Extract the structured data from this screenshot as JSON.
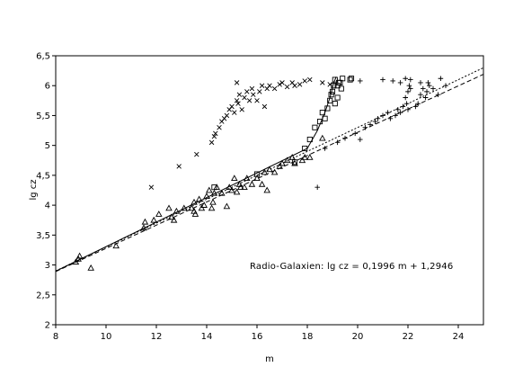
{
  "chart_data": {
    "type": "scatter",
    "xlabel": "m",
    "ylabel": "lg cz",
    "xlim": [
      8,
      25
    ],
    "ylim": [
      2,
      6.5
    ],
    "x_ticks": [
      "8",
      "10",
      "12",
      "14",
      "16",
      "18",
      "20",
      "22",
      "24"
    ],
    "y_ticks": [
      "2",
      "2,5",
      "3",
      "3,5",
      "4",
      "4,5",
      "5",
      "5,5",
      "6",
      "6,5"
    ],
    "grid": false,
    "annotation": "Radio-Galaxien: lg cz = 0,1996 m + 1,2946",
    "series": [
      {
        "marker": "triangle",
        "points": [
          [
            8.8,
            3.05
          ],
          [
            8.9,
            3.1
          ],
          [
            8.95,
            3.15
          ],
          [
            9.4,
            2.95
          ],
          [
            10.4,
            3.32
          ],
          [
            11.5,
            3.62
          ],
          [
            11.55,
            3.72
          ],
          [
            11.9,
            3.75
          ],
          [
            12.1,
            3.85
          ],
          [
            12.5,
            3.95
          ],
          [
            12.6,
            3.8
          ],
          [
            12.7,
            3.75
          ],
          [
            12.8,
            3.9
          ],
          [
            13.1,
            3.95
          ],
          [
            13.4,
            3.95
          ],
          [
            13.5,
            3.9
          ],
          [
            13.5,
            4.05
          ],
          [
            13.55,
            3.85
          ],
          [
            13.7,
            4.1
          ],
          [
            13.8,
            3.95
          ],
          [
            13.9,
            4.0
          ],
          [
            14.0,
            4.15
          ],
          [
            14.1,
            4.25
          ],
          [
            14.2,
            3.95
          ],
          [
            14.25,
            4.05
          ],
          [
            14.3,
            4.2
          ],
          [
            14.4,
            4.3
          ],
          [
            14.6,
            4.2
          ],
          [
            14.8,
            3.98
          ],
          [
            14.9,
            4.3
          ],
          [
            15.0,
            4.25
          ],
          [
            15.1,
            4.45
          ],
          [
            15.2,
            4.22
          ],
          [
            15.3,
            4.35
          ],
          [
            15.35,
            4.3
          ],
          [
            15.5,
            4.3
          ],
          [
            15.6,
            4.45
          ],
          [
            15.8,
            4.35
          ],
          [
            16.0,
            4.45
          ],
          [
            16.2,
            4.35
          ],
          [
            16.3,
            4.55
          ],
          [
            16.4,
            4.25
          ],
          [
            16.5,
            4.6
          ],
          [
            16.7,
            4.55
          ],
          [
            16.9,
            4.65
          ],
          [
            17.0,
            4.7
          ],
          [
            17.2,
            4.75
          ],
          [
            17.4,
            4.8
          ],
          [
            17.5,
            4.7
          ],
          [
            17.8,
            4.75
          ],
          [
            17.9,
            4.8
          ],
          [
            18.1,
            4.8
          ],
          [
            18.6,
            5.12
          ]
        ]
      },
      {
        "marker": "square",
        "points": [
          [
            14.3,
            4.3
          ],
          [
            16.0,
            4.52
          ],
          [
            17.5,
            4.72
          ],
          [
            17.9,
            4.95
          ],
          [
            18.1,
            5.1
          ],
          [
            18.3,
            5.3
          ],
          [
            18.5,
            5.4
          ],
          [
            18.6,
            5.55
          ],
          [
            18.7,
            5.45
          ],
          [
            18.8,
            5.62
          ],
          [
            18.9,
            5.75
          ],
          [
            18.95,
            5.85
          ],
          [
            19.0,
            5.9
          ],
          [
            19.05,
            6.0
          ],
          [
            19.1,
            6.1
          ],
          [
            19.1,
            5.7
          ],
          [
            19.2,
            5.8
          ],
          [
            19.25,
            6.05
          ],
          [
            19.3,
            6.05
          ],
          [
            19.35,
            5.95
          ],
          [
            19.4,
            6.12
          ],
          [
            19.2,
            6.0
          ],
          [
            19.7,
            6.1
          ],
          [
            19.75,
            6.12
          ]
        ]
      },
      {
        "marker": "x",
        "points": [
          [
            11.8,
            4.3
          ],
          [
            12.9,
            4.65
          ],
          [
            13.6,
            4.85
          ],
          [
            14.2,
            5.05
          ],
          [
            14.3,
            5.15
          ],
          [
            14.35,
            5.2
          ],
          [
            14.5,
            5.3
          ],
          [
            14.6,
            5.4
          ],
          [
            14.7,
            5.45
          ],
          [
            14.8,
            5.5
          ],
          [
            14.9,
            5.6
          ],
          [
            15.0,
            5.65
          ],
          [
            15.1,
            5.55
          ],
          [
            15.2,
            5.75
          ],
          [
            15.25,
            5.7
          ],
          [
            15.3,
            5.85
          ],
          [
            15.4,
            5.6
          ],
          [
            15.5,
            5.8
          ],
          [
            15.6,
            5.9
          ],
          [
            15.7,
            5.75
          ],
          [
            15.8,
            5.95
          ],
          [
            15.85,
            5.85
          ],
          [
            16.0,
            5.75
          ],
          [
            16.1,
            5.9
          ],
          [
            16.2,
            6.0
          ],
          [
            16.3,
            5.65
          ],
          [
            16.4,
            5.95
          ],
          [
            16.5,
            6.0
          ],
          [
            16.7,
            5.95
          ],
          [
            16.9,
            6.02
          ],
          [
            17.0,
            6.05
          ],
          [
            17.2,
            5.98
          ],
          [
            17.4,
            6.05
          ],
          [
            17.7,
            6.02
          ],
          [
            17.9,
            6.08
          ],
          [
            18.1,
            6.1
          ],
          [
            18.6,
            6.05
          ],
          [
            18.9,
            6.02
          ],
          [
            15.2,
            6.05
          ],
          [
            17.5,
            6.0
          ]
        ]
      },
      {
        "marker": "plus",
        "points": [
          [
            18.4,
            4.3
          ],
          [
            18.7,
            4.95
          ],
          [
            19.2,
            5.05
          ],
          [
            19.5,
            5.12
          ],
          [
            19.9,
            5.2
          ],
          [
            20.1,
            5.1
          ],
          [
            20.3,
            5.3
          ],
          [
            20.5,
            5.35
          ],
          [
            20.7,
            5.4
          ],
          [
            20.8,
            5.45
          ],
          [
            21.0,
            5.5
          ],
          [
            21.2,
            5.55
          ],
          [
            21.3,
            5.45
          ],
          [
            21.5,
            5.5
          ],
          [
            21.7,
            5.55
          ],
          [
            21.8,
            5.65
          ],
          [
            21.9,
            5.8
          ],
          [
            22.0,
            5.9
          ],
          [
            22.05,
            6.0
          ],
          [
            22.1,
            5.95
          ],
          [
            21.95,
            5.7
          ],
          [
            22.1,
            6.1
          ],
          [
            21.0,
            6.1
          ],
          [
            21.4,
            6.08
          ],
          [
            21.7,
            6.05
          ],
          [
            21.9,
            6.12
          ],
          [
            20.1,
            6.08
          ],
          [
            22.3,
            5.65
          ],
          [
            22.4,
            5.7
          ],
          [
            22.5,
            5.85
          ],
          [
            22.6,
            5.95
          ],
          [
            22.7,
            5.8
          ],
          [
            22.75,
            5.9
          ],
          [
            22.8,
            6.05
          ],
          [
            22.85,
            6.0
          ],
          [
            23.0,
            5.95
          ],
          [
            23.2,
            5.85
          ],
          [
            23.3,
            6.12
          ],
          [
            22.5,
            6.05
          ],
          [
            23.5,
            6.0
          ],
          [
            22.0,
            5.6
          ],
          [
            21.6,
            5.6
          ]
        ]
      }
    ],
    "lines": [
      {
        "style": "solid",
        "points": [
          [
            8,
            2.895
          ],
          [
            18.0,
            4.95
          ],
          [
            18.4,
            5.25
          ],
          [
            18.7,
            5.55
          ],
          [
            18.9,
            5.8
          ],
          [
            19.05,
            6.05
          ],
          [
            19.15,
            6.15
          ]
        ]
      },
      {
        "style": "dashed",
        "points": [
          [
            8,
            2.89
          ],
          [
            25,
            6.19
          ]
        ]
      },
      {
        "style": "dotted",
        "points": [
          [
            8,
            2.9
          ],
          [
            25,
            6.3
          ]
        ]
      }
    ]
  }
}
